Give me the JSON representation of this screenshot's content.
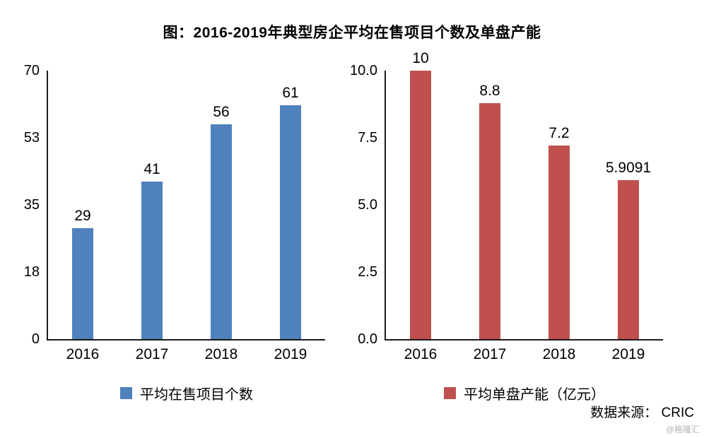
{
  "title": "图：2016-2019年典型房企平均在售项目个数及单盘产能",
  "source": {
    "label": "数据来源： CRIC",
    "watermark": "@格隆汇"
  },
  "chart_data": [
    {
      "type": "bar",
      "categories": [
        "2016",
        "2017",
        "2018",
        "2019"
      ],
      "values": [
        29,
        41,
        56,
        61
      ],
      "labels": [
        "29",
        "41",
        "56",
        "61"
      ],
      "ylim": [
        0,
        70
      ],
      "yticks": [
        "70",
        "53",
        "35",
        "18",
        "0"
      ],
      "legend": "平均在售项目个数",
      "color": "#4F81BD",
      "grid": false,
      "legend_position": "bottom"
    },
    {
      "type": "bar",
      "categories": [
        "2016",
        "2017",
        "2018",
        "2019"
      ],
      "values": [
        10,
        8.8,
        7.2,
        5.9091
      ],
      "labels": [
        "10",
        "8.8",
        "7.2",
        "5.9091"
      ],
      "ylim": [
        0,
        10
      ],
      "yticks": [
        "10.0",
        "7.5",
        "5.0",
        "2.5",
        "0.0"
      ],
      "legend": "平均单盘产能（亿元）",
      "color": "#C0504D",
      "grid": false,
      "legend_position": "bottom"
    }
  ]
}
